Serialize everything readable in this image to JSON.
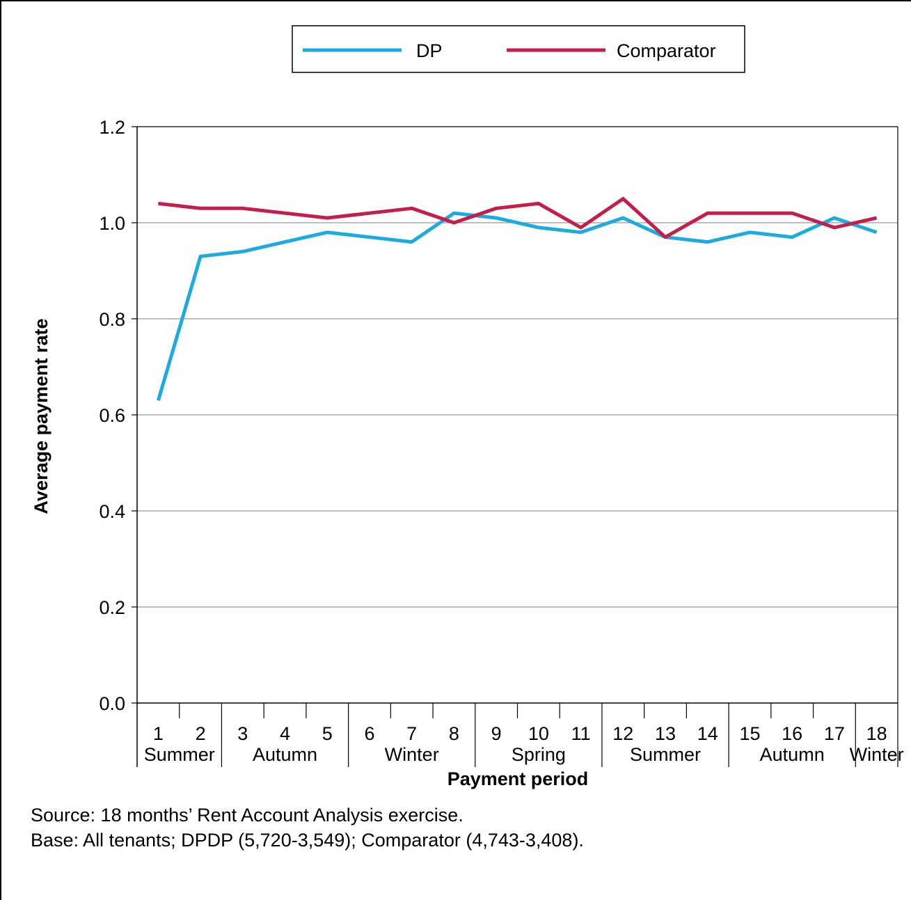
{
  "chart_data": {
    "type": "line",
    "title": "",
    "xlabel": "Payment period",
    "ylabel": "Average payment rate",
    "ylim": [
      0,
      1.2
    ],
    "y_ticks": [
      "0.0",
      "0.2",
      "0.4",
      "0.6",
      "0.8",
      "1.0",
      "1.2"
    ],
    "grid": "horizontal",
    "legend_position": "top",
    "categories": [
      "1",
      "2",
      "3",
      "4",
      "5",
      "6",
      "7",
      "8",
      "9",
      "10",
      "11",
      "12",
      "13",
      "14",
      "15",
      "16",
      "17",
      "18"
    ],
    "season_groups": [
      {
        "label": "Summer",
        "periods": [
          "1",
          "2"
        ]
      },
      {
        "label": "Autumn",
        "periods": [
          "3",
          "4",
          "5"
        ]
      },
      {
        "label": "Winter",
        "periods": [
          "6",
          "7",
          "8"
        ]
      },
      {
        "label": "Spring",
        "periods": [
          "9",
          "10",
          "11"
        ]
      },
      {
        "label": "Summer",
        "periods": [
          "12",
          "13",
          "14"
        ]
      },
      {
        "label": "Autumn",
        "periods": [
          "15",
          "16",
          "17"
        ]
      },
      {
        "label": "Winter",
        "periods": [
          "18"
        ]
      }
    ],
    "series": [
      {
        "name": "DP",
        "color": "#1aabe0",
        "values": [
          0.63,
          0.93,
          0.94,
          0.96,
          0.98,
          0.97,
          0.96,
          1.02,
          1.01,
          0.99,
          0.98,
          1.01,
          0.97,
          0.96,
          0.98,
          0.97,
          1.01,
          0.98
        ]
      },
      {
        "name": "Comparator",
        "color": "#c41e4a",
        "values": [
          1.04,
          1.03,
          1.03,
          1.02,
          1.01,
          1.02,
          1.03,
          1.0,
          1.03,
          1.04,
          0.99,
          1.05,
          0.97,
          1.02,
          1.02,
          1.02,
          0.99,
          1.01
        ]
      }
    ]
  },
  "notes": {
    "source": "Source: 18 months’ Rent Account Analysis exercise.",
    "base": "Base: All tenants; DPDP (5,720-3,549); Comparator (4,743-3,408)."
  }
}
